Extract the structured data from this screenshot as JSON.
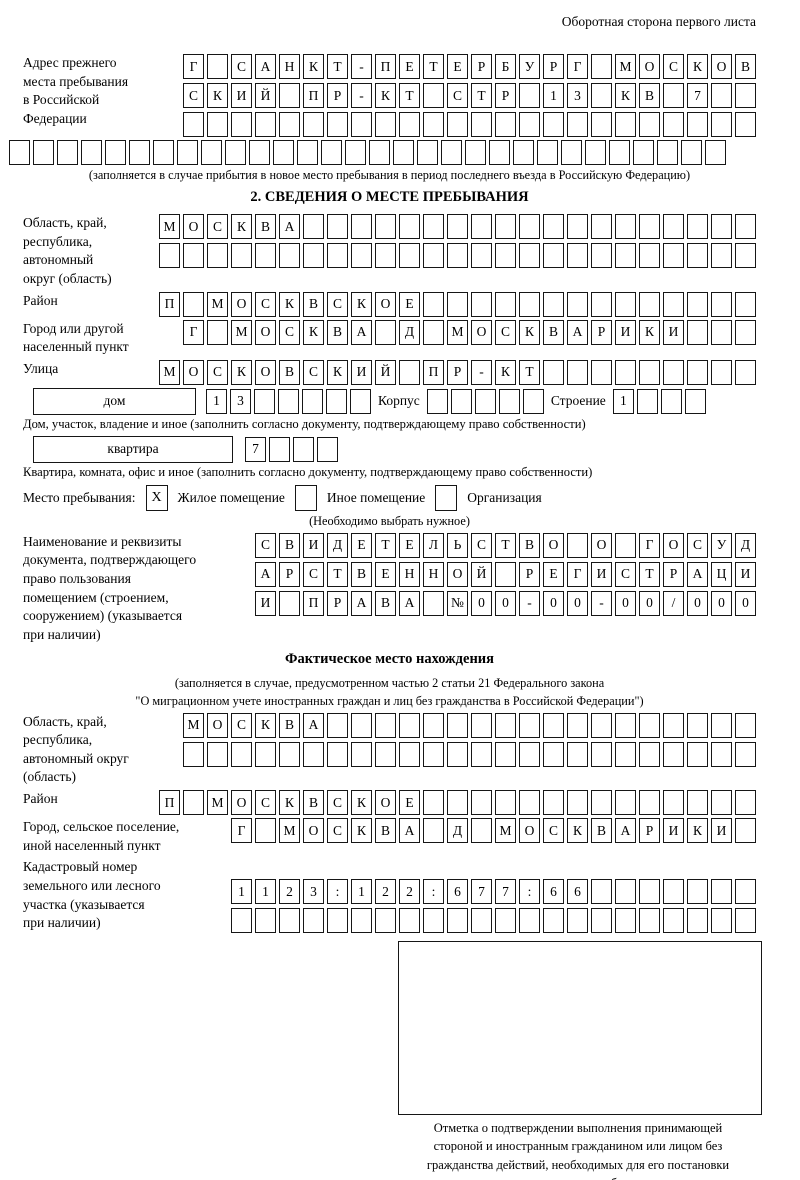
{
  "page": {
    "header_note": "Оборотная сторона первого листа"
  },
  "prev_address": {
    "label": "Адрес прежнего\nместа пребывания\nв Российской\nФедерации",
    "row1": [
      "Г",
      "",
      "С",
      "А",
      "Н",
      "К",
      "Т",
      "-",
      "П",
      "Е",
      "Т",
      "Е",
      "Р",
      "Б",
      "У",
      "Р",
      "Г",
      "",
      "М",
      "О",
      "С",
      "К",
      "О",
      "В"
    ],
    "row2": [
      "С",
      "К",
      "И",
      "Й",
      "",
      "П",
      "Р",
      "-",
      "К",
      "Т",
      "",
      "С",
      "Т",
      "Р",
      "",
      "1",
      "3",
      "",
      "К",
      "В",
      "",
      "7",
      "",
      ""
    ],
    "row3": [
      "",
      "",
      "",
      "",
      "",
      "",
      "",
      "",
      "",
      "",
      "",
      "",
      "",
      "",
      "",
      "",
      "",
      "",
      "",
      "",
      "",
      "",
      "",
      ""
    ],
    "row4": [
      "",
      "",
      "",
      "",
      "",
      "",
      "",
      "",
      "",
      "",
      "",
      "",
      "",
      "",
      "",
      "",
      "",
      "",
      "",
      "",
      "",
      "",
      "",
      "",
      "",
      "",
      "",
      "",
      "",
      ""
    ],
    "caption": "(заполняется в случае прибытия в новое место пребывания в период последнего въезда в Российскую Федерацию)"
  },
  "section2": {
    "title": "2. СВЕДЕНИЯ О МЕСТЕ ПРЕБЫВАНИЯ",
    "oblast": {
      "label": "Область, край,\nреспублика,\nавтономный\nокруг (область)",
      "row1": [
        "М",
        "О",
        "С",
        "К",
        "В",
        "А",
        "",
        "",
        "",
        "",
        "",
        "",
        "",
        "",
        "",
        "",
        "",
        "",
        "",
        "",
        "",
        "",
        "",
        "",
        ""
      ],
      "row2": [
        "",
        "",
        "",
        "",
        "",
        "",
        "",
        "",
        "",
        "",
        "",
        "",
        "",
        "",
        "",
        "",
        "",
        "",
        "",
        "",
        "",
        "",
        "",
        "",
        ""
      ]
    },
    "raion": {
      "label": "Район",
      "row": [
        "П",
        "",
        "М",
        "О",
        "С",
        "К",
        "В",
        "С",
        "К",
        "О",
        "Е",
        "",
        "",
        "",
        "",
        "",
        "",
        "",
        "",
        "",
        "",
        "",
        "",
        "",
        ""
      ]
    },
    "gorod": {
      "label": "Город или другой\nнаселенный пункт",
      "row": [
        "Г",
        "",
        "М",
        "О",
        "С",
        "К",
        "В",
        "А",
        "",
        "Д",
        "",
        "М",
        "О",
        "С",
        "К",
        "В",
        "А",
        "Р",
        "И",
        "К",
        "И",
        "",
        "",
        ""
      ]
    },
    "ulitsa": {
      "label": "Улица",
      "row": [
        "М",
        "О",
        "С",
        "К",
        "О",
        "В",
        "С",
        "К",
        "И",
        "Й",
        "",
        "П",
        "Р",
        "-",
        "К",
        "Т",
        "",
        "",
        "",
        "",
        "",
        "",
        "",
        "",
        ""
      ]
    },
    "dom": {
      "box_label": "дом",
      "cells": [
        "1",
        "3",
        "",
        "",
        "",
        "",
        ""
      ],
      "korpus_label": "Корпус",
      "korpus_cells": [
        "",
        "",
        "",
        "",
        ""
      ],
      "stroenie_label": "Строение",
      "stroenie_cells": [
        "1",
        "",
        "",
        ""
      ],
      "caption": "Дом, участок, владение и иное (заполнить согласно документу, подтверждающему право собственности)"
    },
    "kvartira": {
      "box_label": "квартира",
      "cells": [
        "7",
        "",
        "",
        ""
      ],
      "caption": "Квартира, комната, офис и иное (заполнить согласно документу, подтверждающему право собственности)"
    },
    "mesto": {
      "label": "Место пребывания:",
      "opt1_mark": "X",
      "opt1": "Жилое помещение",
      "opt2_mark": "",
      "opt2": "Иное помещение",
      "opt3_mark": "",
      "opt3": "Организация",
      "caption": "(Необходимо выбрать нужное)"
    },
    "document": {
      "label": "Наименование и реквизиты\nдокумента, подтверждающего\nправо пользования\nпомещением (строением,\nсооружением) (указывается\nпри наличии)",
      "row1": [
        "С",
        "В",
        "И",
        "Д",
        "Е",
        "Т",
        "Е",
        "Л",
        "Ь",
        "С",
        "Т",
        "В",
        "О",
        "",
        "О",
        "",
        "Г",
        "О",
        "С",
        "У",
        "Д"
      ],
      "row2": [
        "А",
        "Р",
        "С",
        "Т",
        "В",
        "Е",
        "Н",
        "Н",
        "О",
        "Й",
        "",
        "Р",
        "Е",
        "Г",
        "И",
        "С",
        "Т",
        "Р",
        "А",
        "Ц",
        "И"
      ],
      "row3": [
        "И",
        "",
        "П",
        "Р",
        "А",
        "В",
        "А",
        "",
        "№",
        "0",
        "0",
        "-",
        "0",
        "0",
        "-",
        "0",
        "0",
        "/",
        "0",
        "0",
        "0"
      ]
    }
  },
  "fact": {
    "title": "Фактическое место нахождения",
    "caption_line1": "(заполняется в случае, предусмотренном частью 2 статьи 21 Федерального закона",
    "caption_line2": "\"О миграционном учете иностранных граждан и лиц без гражданства в Российской Федерации\")",
    "oblast": {
      "label": "Область, край,\nреспублика,\nавтономный округ\n(область)",
      "row1": [
        "М",
        "О",
        "С",
        "К",
        "В",
        "А",
        "",
        "",
        "",
        "",
        "",
        "",
        "",
        "",
        "",
        "",
        "",
        "",
        "",
        "",
        "",
        "",
        "",
        ""
      ],
      "row2": [
        "",
        "",
        "",
        "",
        "",
        "",
        "",
        "",
        "",
        "",
        "",
        "",
        "",
        "",
        "",
        "",
        "",
        "",
        "",
        "",
        "",
        "",
        "",
        ""
      ]
    },
    "raion": {
      "label": "Район",
      "row": [
        "П",
        "",
        "М",
        "О",
        "С",
        "К",
        "В",
        "С",
        "К",
        "О",
        "Е",
        "",
        "",
        "",
        "",
        "",
        "",
        "",
        "",
        "",
        "",
        "",
        "",
        "",
        ""
      ]
    },
    "gorod": {
      "label": "Город, сельское поселение,\nиной населенный пункт",
      "row": [
        "Г",
        "",
        "М",
        "О",
        "С",
        "К",
        "В",
        "А",
        "",
        "Д",
        "",
        "М",
        "О",
        "С",
        "К",
        "В",
        "А",
        "Р",
        "И",
        "К",
        "И",
        ""
      ]
    },
    "kadastr": {
      "label": "Кадастровый номер\nземельного или лесного\nучастка (указывается\nпри наличии)",
      "row1": [
        "1",
        "1",
        "2",
        "3",
        ":",
        "1",
        "2",
        "2",
        ":",
        "6",
        "7",
        "7",
        ":",
        "6",
        "6",
        "",
        "",
        "",
        "",
        "",
        "",
        ""
      ],
      "row2": [
        "",
        "",
        "",
        "",
        "",
        "",
        "",
        "",
        "",
        "",
        "",
        "",
        "",
        "",
        "",
        "",
        "",
        "",
        "",
        "",
        "",
        ""
      ]
    }
  },
  "stamp": {
    "caption": "Отметка о подтверждении выполнения принимающей\nстороной и иностранным гражданином или лицом без\nгражданства действий, необходимых для его постановки\nна учет по месту пребывания"
  }
}
